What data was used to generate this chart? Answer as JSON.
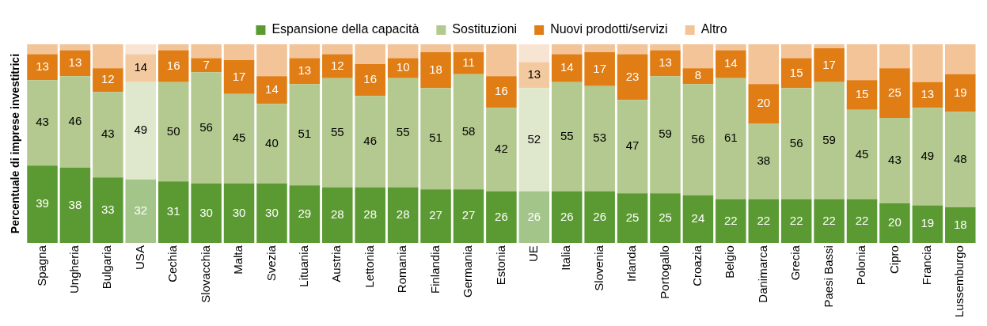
{
  "chart_data": {
    "type": "bar",
    "stacked": true,
    "ylabel": "Percentuale di imprese investitrici",
    "legend": "top",
    "tick_labels": "x",
    "grid": false,
    "ylim": [
      0,
      100
    ],
    "categories": [
      "Spagna",
      "Ungheria",
      "Bulgaria",
      "USA",
      "Cechia",
      "Slovacchia",
      "Malta",
      "Svezia",
      "Lituania",
      "Austria",
      "Lettonia",
      "Romania",
      "Finlandia",
      "Germania",
      "Estonia",
      "UE",
      "Italia",
      "Slovenia",
      "Irlanda",
      "Portogallo",
      "Croazia",
      "Belgio",
      "Danimarca",
      "Grecia",
      "Paesi Bassi",
      "Polonia",
      "Cipro",
      "Francia",
      "Lussemburgo"
    ],
    "series": [
      {
        "name": "Espansione della capacità",
        "color": "#5b9a32",
        "colors": [
          "#5b9a32",
          "#5b9a32",
          "#5b9a32",
          "#a3c58a",
          "#5b9a32",
          "#5b9a32",
          "#5b9a32",
          "#5b9a32",
          "#5b9a32",
          "#5b9a32",
          "#5b9a32",
          "#5b9a32",
          "#5b9a32",
          "#5b9a32",
          "#5b9a32",
          "#a3c58a",
          "#5b9a32",
          "#5b9a32",
          "#5b9a32",
          "#5b9a32",
          "#5b9a32",
          "#5b9a32",
          "#5b9a32",
          "#5b9a32",
          "#5b9a32",
          "#5b9a32",
          "#5b9a32",
          "#5b9a32",
          "#5b9a32"
        ],
        "values": [
          39,
          38,
          33,
          32,
          31,
          30,
          30,
          30,
          29,
          28,
          28,
          28,
          27,
          27,
          26,
          26,
          26,
          26,
          25,
          25,
          24,
          22,
          22,
          22,
          22,
          22,
          20,
          19,
          18
        ],
        "value_labels": [
          "39",
          "38",
          "33",
          "32",
          "31",
          "30",
          "30",
          "30",
          "29",
          "28",
          "28",
          "28",
          "27",
          "27",
          "26",
          "26",
          "26",
          "26",
          "25",
          "25",
          "24",
          "22",
          "22",
          "22",
          "22",
          "22",
          "20",
          "19",
          "18"
        ]
      },
      {
        "name": "Sostituzioni",
        "color": "#b4c98f",
        "colors": [
          "#b4c98f",
          "#b4c98f",
          "#b4c98f",
          "#dfe8cd",
          "#b4c98f",
          "#b4c98f",
          "#b4c98f",
          "#b4c98f",
          "#b4c98f",
          "#b4c98f",
          "#b4c98f",
          "#b4c98f",
          "#b4c98f",
          "#b4c98f",
          "#b4c98f",
          "#dfe8cd",
          "#b4c98f",
          "#b4c98f",
          "#b4c98f",
          "#b4c98f",
          "#b4c98f",
          "#b4c98f",
          "#b4c98f",
          "#b4c98f",
          "#b4c98f",
          "#b4c98f",
          "#b4c98f",
          "#b4c98f",
          "#b4c98f"
        ],
        "values": [
          43,
          46,
          43,
          49,
          50,
          56,
          45,
          40,
          51,
          55,
          46,
          55,
          51,
          58,
          42,
          52,
          55,
          53,
          47,
          59,
          56,
          61,
          38,
          56,
          59,
          45,
          43,
          49,
          48
        ],
        "value_labels": [
          "43",
          "46",
          "43",
          "49",
          "50",
          "56",
          "45",
          "40",
          "51",
          "55",
          "46",
          "55",
          "51",
          "58",
          "42",
          "52",
          "55",
          "53",
          "47",
          "59",
          "56",
          "61",
          "38",
          "56",
          "59",
          "45",
          "43",
          "49",
          "48"
        ]
      },
      {
        "name": "Nuovi prodotti/servizi",
        "color": "#e07d14",
        "colors": [
          "#e07d14",
          "#e07d14",
          "#e07d14",
          "#f3c9a0",
          "#e07d14",
          "#e07d14",
          "#e07d14",
          "#e07d14",
          "#e07d14",
          "#e07d14",
          "#e07d14",
          "#e07d14",
          "#e07d14",
          "#e07d14",
          "#e07d14",
          "#f3c9a0",
          "#e07d14",
          "#e07d14",
          "#e07d14",
          "#e07d14",
          "#e07d14",
          "#e07d14",
          "#e07d14",
          "#e07d14",
          "#e07d14",
          "#e07d14",
          "#e07d14",
          "#e07d14",
          "#e07d14"
        ],
        "values": [
          13,
          13,
          12,
          14,
          16,
          7,
          17,
          14,
          13,
          12,
          16,
          10,
          18,
          11,
          16,
          13,
          14,
          17,
          23,
          13,
          8,
          14,
          20,
          15,
          17,
          15,
          25,
          13,
          19
        ],
        "value_labels": [
          "13",
          "13",
          "12",
          "14",
          "16",
          "7",
          "17",
          "14",
          "13",
          "12",
          "16",
          "10",
          "18",
          "11",
          "16",
          "13",
          "14",
          "17",
          "23",
          "13",
          "8",
          "14",
          "20",
          "15",
          "17",
          "15",
          "25",
          "13",
          "19"
        ]
      },
      {
        "name": "Altro",
        "color": "#f2c497",
        "colors": [
          "#f2c497",
          "#f2c497",
          "#f2c497",
          "#f8e4d2",
          "#f2c497",
          "#f2c497",
          "#f2c497",
          "#f2c497",
          "#f2c497",
          "#f2c497",
          "#f2c497",
          "#f2c497",
          "#f2c497",
          "#f2c497",
          "#f2c497",
          "#f8e4d2",
          "#f2c497",
          "#f2c497",
          "#f2c497",
          "#f2c497",
          "#f2c497",
          "#f2c497",
          "#f2c497",
          "#f2c497",
          "#f2c497",
          "#f2c497",
          "#f2c497",
          "#f2c497",
          "#f2c497"
        ],
        "values": [
          5,
          3,
          12,
          5,
          3,
          7,
          8,
          16,
          7,
          5,
          10,
          7,
          4,
          4,
          16,
          9,
          5,
          4,
          5,
          3,
          12,
          3,
          20,
          7,
          2,
          18,
          12,
          19,
          15
        ]
      }
    ]
  }
}
